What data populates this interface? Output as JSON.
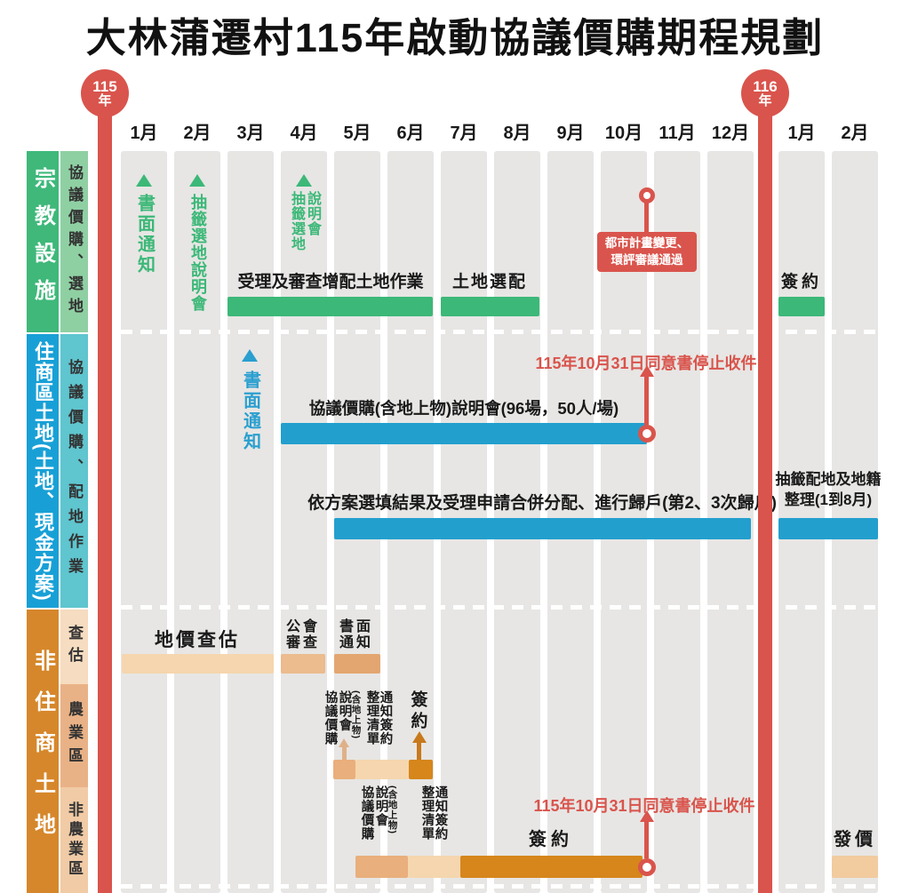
{
  "title": "大林蒲遷村115年啟動協議價購期程規劃",
  "timeline": {
    "year_start": {
      "value": "115",
      "suffix": "年"
    },
    "year_end": {
      "value": "116",
      "suffix": "年"
    },
    "months": [
      "1月",
      "2月",
      "3月",
      "4月",
      "5月",
      "6月",
      "7月",
      "8月",
      "9月",
      "10月",
      "11月",
      "12月",
      "1月",
      "2月"
    ]
  },
  "sidebar": {
    "religious": {
      "main": "宗教設施",
      "sub": "協議價購、選地"
    },
    "residential": {
      "main": "住商區土地(土地、現金方案)",
      "sub": "協議價購、配地作業"
    },
    "non_residential": {
      "main": "非住商土地",
      "row1": "查估",
      "row2": "農業區",
      "row3": "非農業區"
    }
  },
  "religious": {
    "marker_jan": "書面通知",
    "marker_feb": "抽籤選地說明會",
    "marker_apr_col1": "抽籤選地",
    "marker_apr_col2": "說明會",
    "bar1_label": "受理及審查增配土地作業",
    "bar2_label": "土地選配",
    "bar3_label": "簽約",
    "milestone_line1": "都市計畫變更、",
    "milestone_line2": "環評審議通過"
  },
  "residential": {
    "marker_mar": "書面通知",
    "bar1_label": "協議價購(含地上物)說明會(96場，50人/場)",
    "deadline": "115年10月31日同意書停止收件",
    "bar2_label": "依方案選填結果及受理申請合併分配、進行歸戶(第2、3次歸戶)",
    "bar3_line1": "抽籤配地及地籍",
    "bar3_line2": "整理(1到8月)"
  },
  "non_residential": {
    "survey": {
      "bar1_label": "地價查估",
      "bar2_line1": "公會",
      "bar2_line2": "審查",
      "bar3_line1": "書面",
      "bar3_line2": "通知"
    },
    "agri": {
      "col1": "協議價購",
      "col2": "說明會",
      "col3": "(含地上物)",
      "col4": "整理清單",
      "col5": "通知簽約",
      "sign": "簽約"
    },
    "non_agri": {
      "col1": "協議價購",
      "col2": "說明會",
      "col3": "(含地上物)",
      "col4": "整理清單",
      "col5": "通知簽約",
      "sign": "簽約",
      "deadline": "115年10月31日同意書停止收件",
      "issue": "發價"
    }
  },
  "colors": {
    "red": "#d9544c",
    "green": "#3cb878",
    "green_light": "#8fd0a3",
    "blue": "#18a0d6",
    "blue_bar": "#239fce",
    "teal_light": "#5fc5cf",
    "orange": "#d6872b",
    "orange_dark": "#d6861b",
    "peach_light": "#f5d6ae",
    "peach_medium": "#e9af7c",
    "column_gray": "#e7e6e4"
  },
  "chart_data": {
    "type": "bar",
    "title": "大林蒲遷村115年啟動協議價購期程規劃",
    "x_axis": {
      "unit": "month",
      "start": "115年1月",
      "end": "116年2月",
      "ticks": [
        "115年1月",
        "115年2月",
        "115年3月",
        "115年4月",
        "115年5月",
        "115年6月",
        "115年7月",
        "115年8月",
        "115年9月",
        "115年10月",
        "115年11月",
        "115年12月",
        "116年1月",
        "116年2月"
      ]
    },
    "series": [
      {
        "name": "宗教設施｜協議價購、選地",
        "items": [
          {
            "label": "書面通知",
            "type": "milestone",
            "at": "115-01"
          },
          {
            "label": "抽籤選地說明會",
            "type": "milestone",
            "at": "115-02"
          },
          {
            "label": "抽籤選地說明會",
            "type": "milestone",
            "at": "115-04"
          },
          {
            "label": "受理及審查增配土地作業",
            "type": "bar",
            "start": "115-03",
            "end": "115-06"
          },
          {
            "label": "土地選配",
            "type": "bar",
            "start": "115-07",
            "end": "115-08"
          },
          {
            "label": "都市計畫變更、環評審議通過",
            "type": "milestone",
            "at": "115-10"
          },
          {
            "label": "簽約",
            "type": "bar",
            "start": "116-01",
            "end": "116-01"
          }
        ]
      },
      {
        "name": "住商區土地(土地、現金方案)｜協議價購、配地作業",
        "items": [
          {
            "label": "書面通知",
            "type": "milestone",
            "at": "115-03"
          },
          {
            "label": "協議價購(含地上物)說明會(96場，50人/場)",
            "type": "bar",
            "start": "115-04",
            "end": "115-10",
            "note": "115年10月31日同意書停止收件"
          },
          {
            "label": "依方案選填結果及受理申請合併分配、進行歸戶(第2、3次歸戶)",
            "type": "bar",
            "start": "115-05",
            "end": "115-12"
          },
          {
            "label": "抽籤配地及地籍整理(1到8月)",
            "type": "bar",
            "start": "116-01",
            "end": "116-02"
          }
        ]
      },
      {
        "name": "非住商土地｜查估",
        "items": [
          {
            "label": "地價查估",
            "type": "bar",
            "start": "115-01",
            "end": "115-03"
          },
          {
            "label": "公會審查",
            "type": "bar",
            "start": "115-04",
            "end": "115-04"
          },
          {
            "label": "書面通知",
            "type": "bar",
            "start": "115-05",
            "end": "115-05"
          }
        ]
      },
      {
        "name": "非住商土地｜農業區",
        "items": [
          {
            "label": "協議價購(含地上物)說明會",
            "type": "bar",
            "start": "115-05",
            "end": "115-05"
          },
          {
            "label": "整理通知簽約清單",
            "type": "bar",
            "start": "115-05",
            "end": "115-06"
          },
          {
            "label": "簽約",
            "type": "bar",
            "start": "115-06",
            "end": "115-07"
          }
        ]
      },
      {
        "name": "非住商土地｜非農業區",
        "items": [
          {
            "label": "協議價購(含地上物)說明會",
            "type": "bar",
            "start": "115-05",
            "end": "115-05"
          },
          {
            "label": "整理通知簽約清單",
            "type": "bar",
            "start": "115-06",
            "end": "115-06"
          },
          {
            "label": "簽約",
            "type": "bar",
            "start": "115-07",
            "end": "115-10",
            "note": "115年10月31日同意書停止收件"
          },
          {
            "label": "發價",
            "type": "bar",
            "start": "116-02",
            "end": "116-02"
          }
        ]
      }
    ]
  }
}
